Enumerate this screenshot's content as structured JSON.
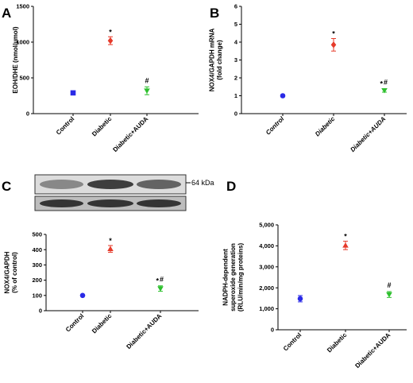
{
  "chart_data": [
    {
      "panel": "A",
      "type": "scatter",
      "categories": [
        "Control",
        "Diabetic",
        "Diabetic+AUDA"
      ],
      "values": [
        290,
        1020,
        320
      ],
      "errors": [
        15,
        55,
        55
      ],
      "markers": [
        "square",
        "diamond",
        "triangle-down"
      ],
      "colors": [
        "#2a2ae6",
        "#e63a2a",
        "#2ec02e"
      ],
      "annotations": [
        "",
        "*",
        "#"
      ],
      "ylabel": "EOH/DHE (nmol/µmol)",
      "ylim": [
        0,
        1500
      ],
      "yticks": [
        "0",
        "500",
        "1000",
        "1500"
      ],
      "italic_categories": false
    },
    {
      "panel": "B",
      "type": "scatter",
      "categories": [
        "Control",
        "Diabetic",
        "Diabetic+AUDA"
      ],
      "values": [
        1.0,
        3.85,
        1.3
      ],
      "errors": [
        0.05,
        0.35,
        0.1
      ],
      "markers": [
        "circle",
        "diamond",
        "triangle-down"
      ],
      "colors": [
        "#2a2ae6",
        "#e63a2a",
        "#2ec02e"
      ],
      "annotations": [
        "",
        "*",
        "*,#"
      ],
      "ylabel": "NOX4/GAPDH mRNA\n(fold change)",
      "ylim": [
        0,
        6
      ],
      "yticks": [
        "0",
        "1",
        "2",
        "3",
        "4",
        "5",
        "6"
      ],
      "italic_categories": true
    },
    {
      "panel": "C",
      "type": "scatter",
      "categories": [
        "Control",
        "Diabetic",
        "Diabetic+AUDA"
      ],
      "values": [
        100,
        405,
        145
      ],
      "errors": [
        4,
        22,
        18
      ],
      "markers": [
        "circle",
        "triangle-up",
        "triangle-down"
      ],
      "colors": [
        "#2a2ae6",
        "#e63a2a",
        "#2ec02e"
      ],
      "annotations": [
        "",
        "*",
        "*,#"
      ],
      "ylabel": "NOX4/GAPDH\n(% of control)",
      "ylim": [
        0,
        500
      ],
      "yticks": [
        "0",
        "100",
        "200",
        "300",
        "400",
        "500"
      ],
      "italic_categories": false,
      "blot_label": "64 kDa"
    },
    {
      "panel": "D",
      "type": "scatter",
      "categories": [
        "Control",
        "Diabetic",
        "Diabetic+AUDA"
      ],
      "values": [
        1480,
        4020,
        1680
      ],
      "errors": [
        150,
        200,
        140
      ],
      "markers": [
        "circle",
        "triangle-up",
        "triangle-down"
      ],
      "colors": [
        "#2a2ae6",
        "#e63a2a",
        "#2ec02e"
      ],
      "annotations": [
        "",
        "*",
        "#"
      ],
      "ylabel": "NADPH-dependent\nsuperoxide generation\n(RLU/min/mg proteins)",
      "ylim": [
        0,
        5000
      ],
      "yticks": [
        "0",
        "1,000",
        "2,000",
        "3,000",
        "4,000",
        "5,000"
      ],
      "italic_categories": false
    }
  ]
}
